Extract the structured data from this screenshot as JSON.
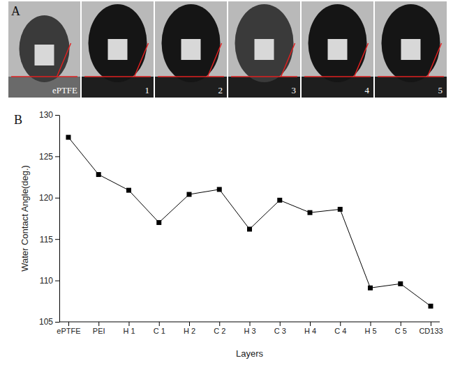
{
  "panel_a": {
    "letter": "A",
    "photo_labels": [
      "ePTFE",
      "1",
      "2",
      "3",
      "4",
      "5"
    ]
  },
  "panel_b": {
    "letter": "B"
  },
  "chart_data": {
    "type": "line",
    "x_label": "Layers",
    "y_label": "Water Contact Angle(deg.)",
    "categories": [
      "ePTFE",
      "PEI",
      "H 1",
      "C 1",
      "H 2",
      "C 2",
      "H 3",
      "C 3",
      "H 4",
      "C 4",
      "H 5",
      "C 5",
      "CD133"
    ],
    "values": [
      127.3,
      122.8,
      120.9,
      117.0,
      120.4,
      121.0,
      116.2,
      119.7,
      118.2,
      118.6,
      109.1,
      109.6,
      106.9
    ],
    "color": "#000000",
    "marker": "square",
    "line_style": "solid",
    "ylim": [
      105,
      130
    ],
    "yticks": [
      105,
      110,
      115,
      120,
      125,
      130
    ],
    "grid": false
  }
}
